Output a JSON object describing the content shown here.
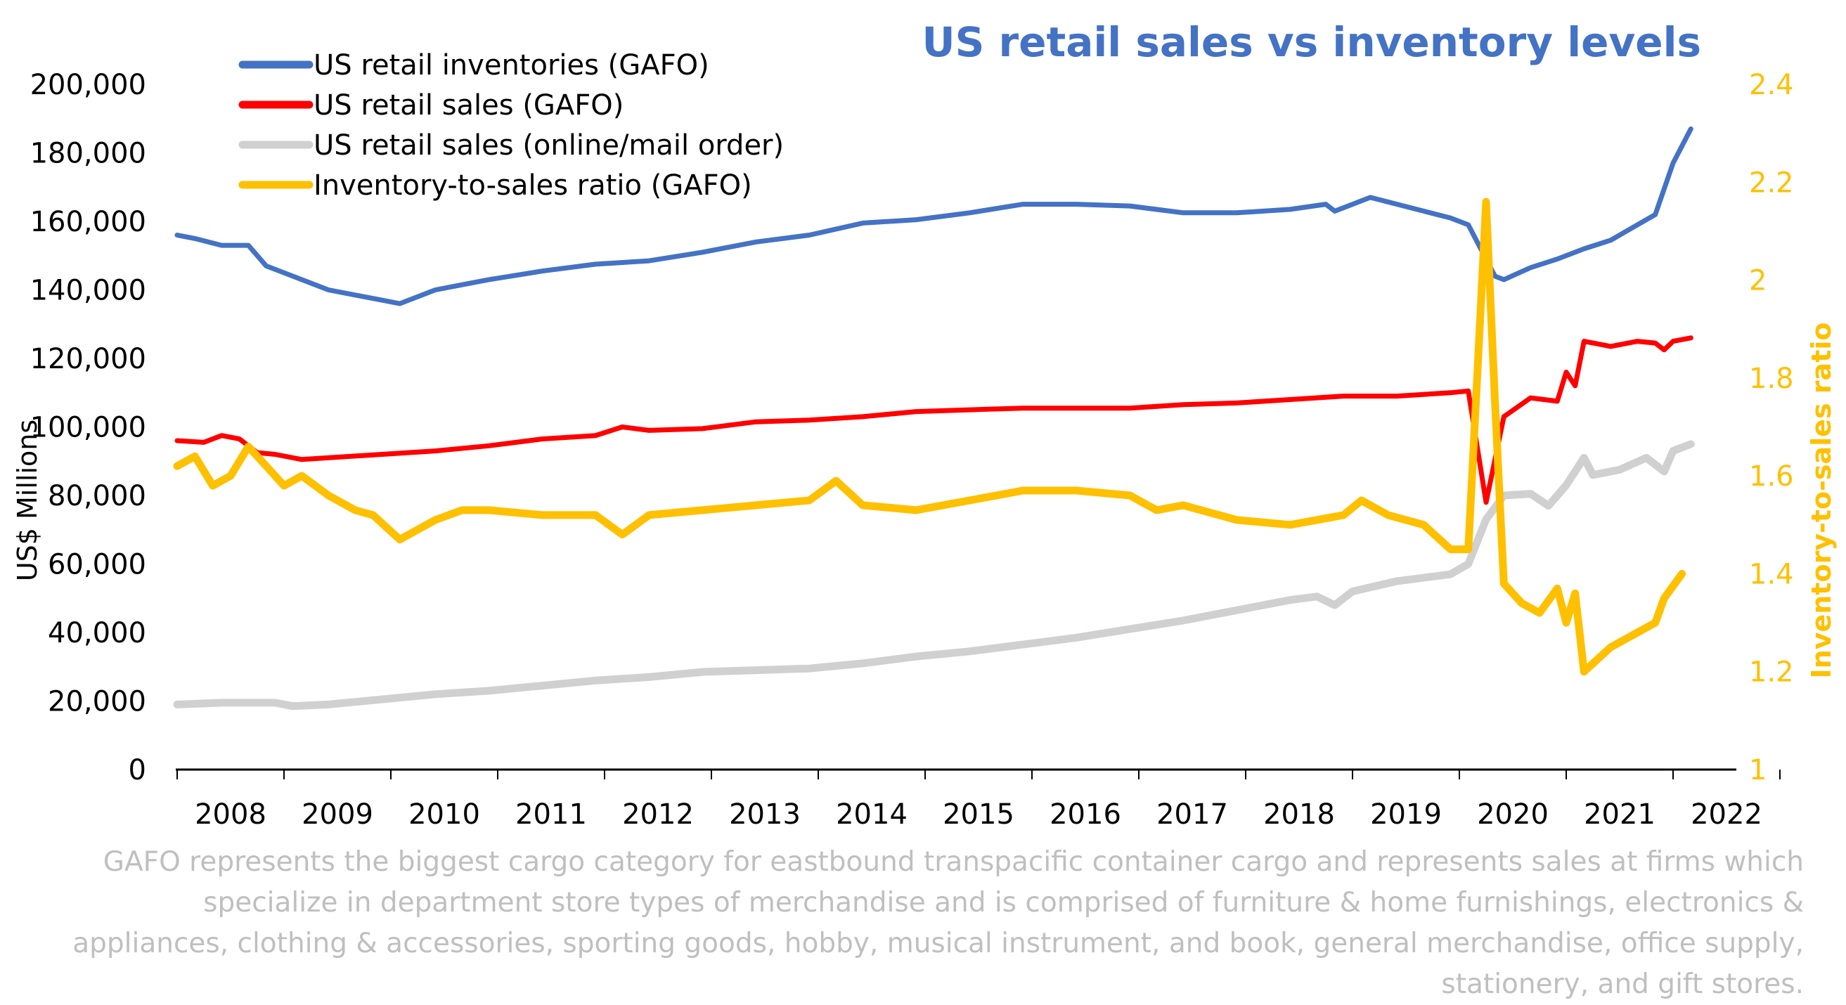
{
  "chart_data": {
    "type": "line",
    "title": "US retail sales vs inventory levels",
    "ylabel": "US$ Millions",
    "y2label": "Inventory-to-sales ratio",
    "ylim": [
      0,
      200000
    ],
    "y2lim": [
      1,
      2.4
    ],
    "yticks": [
      "0",
      "20,000",
      "40,000",
      "60,000",
      "80,000",
      "100,000",
      "120,000",
      "140,000",
      "160,000",
      "180,000",
      "200,000"
    ],
    "y2ticks": [
      "1",
      "1.2",
      "1.4",
      "1.6",
      "1.8",
      "2",
      "2.2",
      "2.4"
    ],
    "xticks": [
      "2008",
      "2009",
      "2010",
      "2011",
      "2012",
      "2013",
      "2014",
      "2015",
      "2016",
      "2017",
      "2018",
      "2019",
      "2020",
      "2021",
      "2022"
    ],
    "x_start": "2008-01",
    "legend_position": "top-left",
    "grid": false,
    "series": [
      {
        "name": "US retail inventories (GAFO)",
        "axis": "left",
        "color": "#4472c4",
        "points": [
          [
            "2008-01",
            156000
          ],
          [
            "2008-03",
            155000
          ],
          [
            "2008-06",
            153000
          ],
          [
            "2008-09",
            153000
          ],
          [
            "2008-11",
            147000
          ],
          [
            "2009-03",
            143000
          ],
          [
            "2009-06",
            140000
          ],
          [
            "2009-09",
            138500
          ],
          [
            "2009-12",
            137000
          ],
          [
            "2010-02",
            136000
          ],
          [
            "2010-06",
            140000
          ],
          [
            "2010-12",
            143000
          ],
          [
            "2011-06",
            145500
          ],
          [
            "2011-12",
            147500
          ],
          [
            "2012-06",
            148500
          ],
          [
            "2012-12",
            151000
          ],
          [
            "2013-06",
            154000
          ],
          [
            "2013-12",
            156000
          ],
          [
            "2014-06",
            159500
          ],
          [
            "2014-12",
            160500
          ],
          [
            "2015-06",
            162500
          ],
          [
            "2015-12",
            165000
          ],
          [
            "2016-06",
            165000
          ],
          [
            "2016-12",
            164500
          ],
          [
            "2017-06",
            162500
          ],
          [
            "2017-12",
            162500
          ],
          [
            "2018-06",
            163500
          ],
          [
            "2018-10",
            165000
          ],
          [
            "2018-11",
            163000
          ],
          [
            "2019-03",
            167000
          ],
          [
            "2019-06",
            165000
          ],
          [
            "2019-09",
            163000
          ],
          [
            "2019-12",
            161000
          ],
          [
            "2020-02",
            159000
          ],
          [
            "2020-05",
            144000
          ],
          [
            "2020-06",
            143000
          ],
          [
            "2020-09",
            146500
          ],
          [
            "2020-12",
            149000
          ],
          [
            "2021-03",
            152000
          ],
          [
            "2021-06",
            154500
          ],
          [
            "2021-09",
            159000
          ],
          [
            "2021-11",
            162000
          ],
          [
            "2022-01",
            177000
          ],
          [
            "2022-03",
            187000
          ]
        ]
      },
      {
        "name": "US retail sales (GAFO)",
        "axis": "left",
        "color": "#ff0000",
        "points": [
          [
            "2008-01",
            96000
          ],
          [
            "2008-04",
            95500
          ],
          [
            "2008-06",
            97500
          ],
          [
            "2008-08",
            96500
          ],
          [
            "2008-10",
            92500
          ],
          [
            "2008-12",
            92000
          ],
          [
            "2009-03",
            90500
          ],
          [
            "2009-09",
            91500
          ],
          [
            "2009-12",
            92000
          ],
          [
            "2010-06",
            93000
          ],
          [
            "2010-12",
            94500
          ],
          [
            "2011-06",
            96500
          ],
          [
            "2011-12",
            97500
          ],
          [
            "2012-03",
            100000
          ],
          [
            "2012-06",
            99000
          ],
          [
            "2012-12",
            99500
          ],
          [
            "2013-06",
            101500
          ],
          [
            "2013-12",
            102000
          ],
          [
            "2014-06",
            103000
          ],
          [
            "2014-12",
            104500
          ],
          [
            "2015-06",
            105000
          ],
          [
            "2015-12",
            105500
          ],
          [
            "2016-06",
            105500
          ],
          [
            "2016-12",
            105500
          ],
          [
            "2017-06",
            106500
          ],
          [
            "2017-12",
            107000
          ],
          [
            "2018-06",
            108000
          ],
          [
            "2018-12",
            109000
          ],
          [
            "2019-06",
            109000
          ],
          [
            "2019-12",
            110000
          ],
          [
            "2020-02",
            110500
          ],
          [
            "2020-04",
            78000
          ],
          [
            "2020-06",
            103000
          ],
          [
            "2020-09",
            108500
          ],
          [
            "2020-12",
            107500
          ],
          [
            "2021-01",
            116000
          ],
          [
            "2021-02",
            112000
          ],
          [
            "2021-03",
            125000
          ],
          [
            "2021-06",
            123500
          ],
          [
            "2021-09",
            125000
          ],
          [
            "2021-11",
            124500
          ],
          [
            "2021-12",
            122500
          ],
          [
            "2022-01",
            125000
          ],
          [
            "2022-03",
            126000
          ]
        ]
      },
      {
        "name": "US retail sales (online/mail order)",
        "axis": "left",
        "color": "#d0d0d0",
        "points": [
          [
            "2008-01",
            19000
          ],
          [
            "2008-06",
            19500
          ],
          [
            "2008-12",
            19500
          ],
          [
            "2009-02",
            18500
          ],
          [
            "2009-06",
            19000
          ],
          [
            "2009-12",
            20500
          ],
          [
            "2010-06",
            22000
          ],
          [
            "2010-12",
            23000
          ],
          [
            "2011-06",
            24500
          ],
          [
            "2011-12",
            26000
          ],
          [
            "2012-06",
            27000
          ],
          [
            "2012-12",
            28500
          ],
          [
            "2013-06",
            29000
          ],
          [
            "2013-12",
            29500
          ],
          [
            "2014-06",
            31000
          ],
          [
            "2014-12",
            33000
          ],
          [
            "2015-06",
            34500
          ],
          [
            "2015-12",
            36500
          ],
          [
            "2016-06",
            38500
          ],
          [
            "2016-12",
            41000
          ],
          [
            "2017-06",
            43500
          ],
          [
            "2017-12",
            46500
          ],
          [
            "2018-06",
            49500
          ],
          [
            "2018-09",
            50500
          ],
          [
            "2018-11",
            48000
          ],
          [
            "2019-01",
            52000
          ],
          [
            "2019-06",
            55000
          ],
          [
            "2019-12",
            57000
          ],
          [
            "2020-02",
            60000
          ],
          [
            "2020-04",
            73000
          ],
          [
            "2020-06",
            80000
          ],
          [
            "2020-09",
            80500
          ],
          [
            "2020-11",
            77000
          ],
          [
            "2021-01",
            83000
          ],
          [
            "2021-03",
            91000
          ],
          [
            "2021-04",
            86000
          ],
          [
            "2021-07",
            87500
          ],
          [
            "2021-10",
            91000
          ],
          [
            "2021-12",
            87000
          ],
          [
            "2022-01",
            93000
          ],
          [
            "2022-03",
            95000
          ]
        ]
      },
      {
        "name": "Inventory-to-sales ratio (GAFO)",
        "axis": "right",
        "color": "#ffc000",
        "points": [
          [
            "2008-01",
            1.62
          ],
          [
            "2008-03",
            1.64
          ],
          [
            "2008-05",
            1.58
          ],
          [
            "2008-07",
            1.6
          ],
          [
            "2008-09",
            1.66
          ],
          [
            "2008-11",
            1.62
          ],
          [
            "2009-01",
            1.58
          ],
          [
            "2009-03",
            1.6
          ],
          [
            "2009-06",
            1.56
          ],
          [
            "2009-09",
            1.53
          ],
          [
            "2009-11",
            1.52
          ],
          [
            "2010-02",
            1.47
          ],
          [
            "2010-06",
            1.51
          ],
          [
            "2010-09",
            1.53
          ],
          [
            "2010-12",
            1.53
          ],
          [
            "2011-06",
            1.52
          ],
          [
            "2011-12",
            1.52
          ],
          [
            "2012-03",
            1.48
          ],
          [
            "2012-06",
            1.52
          ],
          [
            "2012-12",
            1.53
          ],
          [
            "2013-06",
            1.54
          ],
          [
            "2013-12",
            1.55
          ],
          [
            "2014-03",
            1.59
          ],
          [
            "2014-06",
            1.54
          ],
          [
            "2014-12",
            1.53
          ],
          [
            "2015-06",
            1.55
          ],
          [
            "2015-12",
            1.57
          ],
          [
            "2016-06",
            1.57
          ],
          [
            "2016-12",
            1.56
          ],
          [
            "2017-03",
            1.53
          ],
          [
            "2017-06",
            1.54
          ],
          [
            "2017-12",
            1.51
          ],
          [
            "2018-06",
            1.5
          ],
          [
            "2018-12",
            1.52
          ],
          [
            "2019-02",
            1.55
          ],
          [
            "2019-05",
            1.52
          ],
          [
            "2019-09",
            1.5
          ],
          [
            "2019-12",
            1.45
          ],
          [
            "2020-02",
            1.45
          ],
          [
            "2020-03",
            1.8
          ],
          [
            "2020-04",
            2.16
          ],
          [
            "2020-05",
            1.75
          ],
          [
            "2020-06",
            1.38
          ],
          [
            "2020-08",
            1.34
          ],
          [
            "2020-10",
            1.32
          ],
          [
            "2020-12",
            1.37
          ],
          [
            "2021-01",
            1.3
          ],
          [
            "2021-02",
            1.36
          ],
          [
            "2021-03",
            1.2
          ],
          [
            "2021-06",
            1.25
          ],
          [
            "2021-09",
            1.28
          ],
          [
            "2021-11",
            1.3
          ],
          [
            "2021-12",
            1.35
          ],
          [
            "2022-02",
            1.4
          ]
        ]
      }
    ]
  },
  "footnote": "GAFO represents the biggest cargo category for eastbound transpacific container cargo and represents sales at firms which specialize in department store types of merchandise and is comprised of furniture & home furnishings, electronics & appliances, clothing & accessories, sporting goods, hobby, musical instrument, and book, general merchandise, office supply, stationery, and gift stores."
}
